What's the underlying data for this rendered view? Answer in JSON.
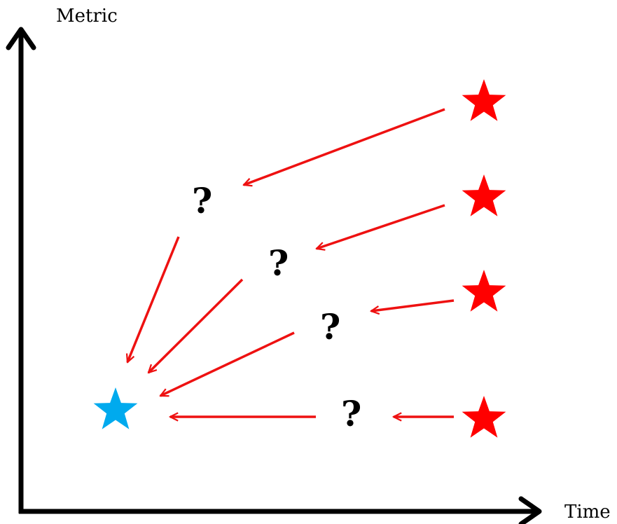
{
  "axes": {
    "y_label": "Metric",
    "x_label": "Time"
  },
  "colors": {
    "axis": "#000000",
    "arrow": "#ee1111",
    "start_star": "#ff0000",
    "target_star": "#00aaee",
    "question_mark": "#000000"
  },
  "nodes": {
    "target_star": {
      "icon": "star-icon",
      "label": ""
    },
    "start_stars": [
      {
        "icon": "star-icon"
      },
      {
        "icon": "star-icon"
      },
      {
        "icon": "star-icon"
      },
      {
        "icon": "star-icon"
      }
    ],
    "intermediate_marks": [
      {
        "text": "?"
      },
      {
        "text": "?"
      },
      {
        "text": "?"
      },
      {
        "text": "?"
      }
    ]
  }
}
